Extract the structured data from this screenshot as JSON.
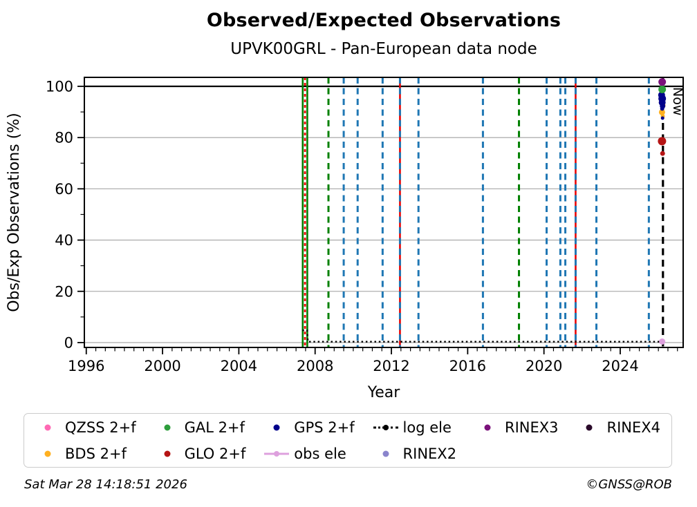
{
  "title": "Observed/Expected Observations",
  "subtitle": "UPVK00GRL - Pan-European data node",
  "footer": {
    "timestamp": "Sat Mar 28 14:18:51 2026",
    "copyright": "©GNSS@ROB"
  },
  "colors": {
    "grid": "#b0b0b0",
    "event_blue": "#1f77b4",
    "event_green": "#008000",
    "event_red": "#e80000",
    "now": "#000000"
  },
  "chart_data": {
    "type": "scatter",
    "title": "Observed/Expected Observations",
    "subtitle": "UPVK00GRL - Pan-European data node",
    "xlabel": "Year",
    "ylabel": "Obs/Exp Observations (%)",
    "xlim": [
      1995.9,
      2027.3
    ],
    "ylim": [
      -1.9,
      103.5
    ],
    "x_major_ticks": [
      1996,
      2000,
      2004,
      2008,
      2012,
      2016,
      2020,
      2024
    ],
    "x_minor_step": 0.5,
    "y_major_ticks": [
      0,
      20,
      40,
      60,
      80,
      100
    ],
    "y_minor_ticks": [
      10,
      30,
      50,
      70,
      90
    ],
    "y_gridlines": [
      0,
      20,
      40,
      60,
      80
    ],
    "hline": 100,
    "grid_on": true,
    "legend_position": "below",
    "event_lines": [
      {
        "year": 2007.35,
        "color": "#008000",
        "style": "solid"
      },
      {
        "year": 2007.47,
        "color": "#e80000",
        "style": "short-dash"
      },
      {
        "year": 2007.59,
        "color": "#008000",
        "style": "solid"
      },
      {
        "year": 2008.7,
        "color": "#008000",
        "style": "dashed"
      },
      {
        "year": 2009.5,
        "color": "#1f77b4",
        "style": "dashed"
      },
      {
        "year": 2010.23,
        "color": "#1f77b4",
        "style": "dashed"
      },
      {
        "year": 2011.54,
        "color": "#1f77b4",
        "style": "dashed"
      },
      {
        "year": 2012.45,
        "color": "#e80000",
        "style": "solid"
      },
      {
        "year": 2012.45,
        "color": "#1f77b4",
        "style": "dashed"
      },
      {
        "year": 2013.42,
        "color": "#1f77b4",
        "style": "dashed"
      },
      {
        "year": 2016.8,
        "color": "#1f77b4",
        "style": "dashed"
      },
      {
        "year": 2018.69,
        "color": "#008000",
        "style": "dashed"
      },
      {
        "year": 2020.14,
        "color": "#1f77b4",
        "style": "dashed"
      },
      {
        "year": 2020.86,
        "color": "#1f77b4",
        "style": "dashed"
      },
      {
        "year": 2021.12,
        "color": "#1f77b4",
        "style": "dashed"
      },
      {
        "year": 2021.66,
        "color": "#e80000",
        "style": "solid"
      },
      {
        "year": 2021.66,
        "color": "#1f77b4",
        "style": "dashed"
      },
      {
        "year": 2022.75,
        "color": "#1f77b4",
        "style": "dashed"
      },
      {
        "year": 2025.5,
        "color": "#1f77b4",
        "style": "dashed"
      }
    ],
    "now_line": {
      "year": 2026.24,
      "label": "Now",
      "color": "#000000",
      "style": "dashed"
    },
    "log_ele_line": {
      "name": "log ele",
      "color": "#000000",
      "style": "dotted",
      "points": [
        [
          2007.33,
          4.8
        ],
        [
          2007.58,
          4.8
        ],
        [
          2007.62,
          0.35
        ],
        [
          2026.2,
          0.35
        ]
      ]
    },
    "series": [
      {
        "name": "GLO 2+f",
        "color": "#b51414",
        "points": [
          [
            2026.19,
            78.6,
            6
          ],
          [
            2026.22,
            73.8,
            3.5
          ]
        ]
      },
      {
        "name": "BDS 2+f",
        "color": "#ffb020",
        "points": [
          [
            2026.23,
            92.5,
            4
          ],
          [
            2026.19,
            89.9,
            4.5
          ],
          [
            2026.23,
            88.3,
            3
          ]
        ]
      },
      {
        "name": "GPS 2+f",
        "color": "#00008b",
        "points": [
          [
            2026.17,
            96.6,
            5
          ],
          [
            2026.2,
            95.2,
            5.5
          ],
          [
            2026.2,
            93.7,
            5
          ],
          [
            2026.22,
            92.3,
            4
          ],
          [
            2026.2,
            91.3,
            3
          ],
          [
            2026.22,
            87.6,
            2.5
          ]
        ]
      },
      {
        "name": "GAL 2+f",
        "color": "#2e9e3c",
        "points": [
          [
            2026.2,
            98.8,
            5.5
          ]
        ]
      },
      {
        "name": "RINEX3",
        "color": "#7b117b",
        "points": [
          [
            2026.2,
            101.7,
            5.5
          ]
        ]
      },
      {
        "name": "obs ele",
        "color": "#dda0dd",
        "points": [
          [
            2026.2,
            0.4,
            4.5
          ]
        ]
      }
    ]
  },
  "legend": {
    "columns": [
      [
        {
          "label": "QZSS 2+f",
          "color": "#ff69b4",
          "marker": "dot"
        },
        {
          "label": "BDS 2+f",
          "color": "#ffb020",
          "marker": "dot"
        }
      ],
      [
        {
          "label": "GAL 2+f",
          "color": "#2e9e3c",
          "marker": "dot"
        },
        {
          "label": "GLO 2+f",
          "color": "#b51414",
          "marker": "dot"
        }
      ],
      [
        {
          "label": "GPS 2+f",
          "color": "#00008b",
          "marker": "dot"
        },
        {
          "label": "obs ele",
          "color": "#dda0dd",
          "marker": "line-dot"
        }
      ],
      [
        {
          "label": "log ele",
          "color": "#000000",
          "marker": "dotted-line-dot"
        },
        {
          "label": "RINEX2",
          "color": "#8a84cc",
          "marker": "dot"
        }
      ],
      [
        {
          "label": "RINEX3",
          "color": "#7b117b",
          "marker": "dot"
        }
      ],
      [
        {
          "label": "RINEX4",
          "color": "#2a0a2a",
          "marker": "dot"
        }
      ]
    ]
  }
}
